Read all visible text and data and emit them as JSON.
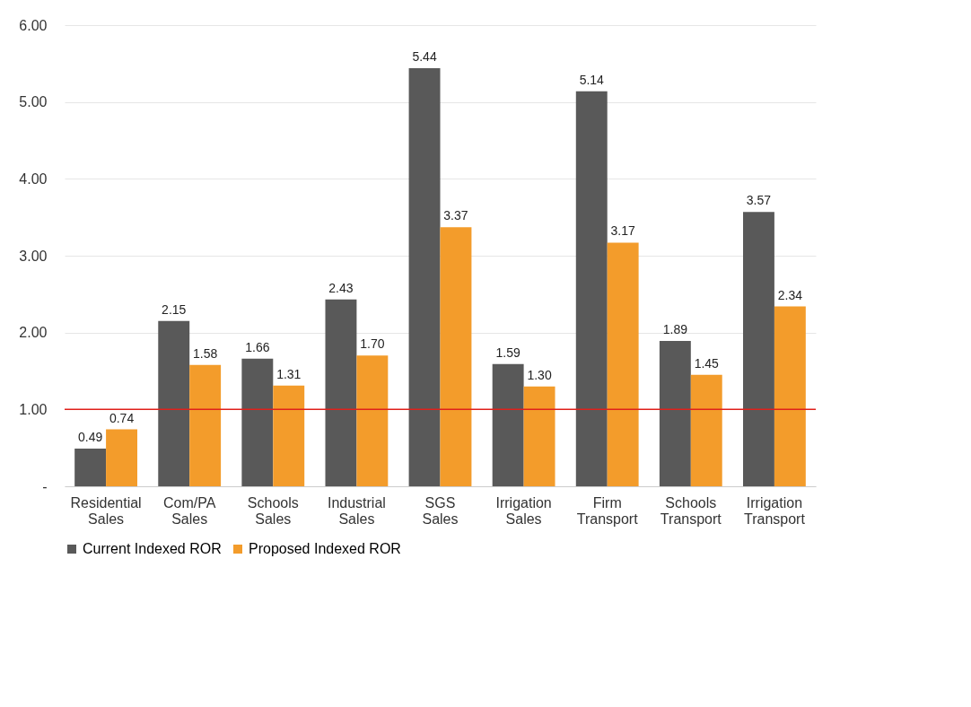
{
  "chart_data": {
    "type": "bar",
    "categories": [
      "Residential Sales",
      "Com/PA Sales",
      "Schools Sales",
      "Industrial Sales",
      "SGS Sales",
      "Irrigation Sales",
      "Firm Transport",
      "Schools Transport",
      "Irrigation Transport"
    ],
    "series": [
      {
        "name": "Current Indexed ROR",
        "color": "#595959",
        "values": [
          0.49,
          2.15,
          1.66,
          2.43,
          5.44,
          1.59,
          5.14,
          1.89,
          3.57
        ],
        "value_labels": [
          "0.49",
          "2.15",
          "1.66",
          "2.43",
          "5.44",
          "1.59",
          "5.14",
          "1.89",
          "3.57"
        ]
      },
      {
        "name": "Proposed Indexed ROR",
        "color": "#f39c2b",
        "values": [
          0.74,
          1.58,
          1.31,
          1.7,
          3.37,
          1.3,
          3.17,
          1.45,
          2.34
        ],
        "value_labels": [
          "0.74",
          "1.58",
          "1.31",
          "1.70",
          "3.37",
          "1.30",
          "3.17",
          "1.45",
          "2.34"
        ]
      }
    ],
    "ylim": [
      0,
      6
    ],
    "yticks": [
      {
        "value": 0,
        "label": "-"
      },
      {
        "value": 1,
        "label": "1.00"
      },
      {
        "value": 2,
        "label": "2.00"
      },
      {
        "value": 3,
        "label": "3.00"
      },
      {
        "value": 4,
        "label": "4.00"
      },
      {
        "value": 5,
        "label": "5.00"
      },
      {
        "value": 6,
        "label": "6.00"
      }
    ],
    "ref_lines": [
      {
        "axis": "y",
        "value": 1,
        "color": "#e0201b"
      }
    ],
    "grid": "y",
    "legend": "bottom"
  }
}
